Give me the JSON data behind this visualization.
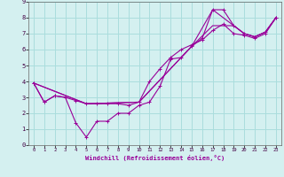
{
  "xlabel": "Windchill (Refroidissement éolien,°C)",
  "bg_color": "#d4f0f0",
  "line_color": "#990099",
  "grid_color": "#aadddd",
  "xlim": [
    -0.5,
    23.5
  ],
  "ylim": [
    0,
    9
  ],
  "xticks": [
    0,
    1,
    2,
    3,
    4,
    5,
    6,
    7,
    8,
    9,
    10,
    11,
    12,
    13,
    14,
    15,
    16,
    17,
    18,
    19,
    20,
    21,
    22,
    23
  ],
  "yticks": [
    0,
    1,
    2,
    3,
    4,
    5,
    6,
    7,
    8,
    9
  ],
  "series1_x": [
    0,
    1,
    2,
    3,
    4,
    5,
    6,
    7,
    8,
    9,
    10,
    11,
    12,
    13,
    14,
    15,
    16,
    17,
    18,
    19,
    20,
    21,
    22,
    23
  ],
  "series1_y": [
    3.9,
    2.7,
    3.1,
    3.0,
    1.4,
    0.5,
    1.5,
    1.5,
    2.0,
    2.0,
    2.5,
    2.7,
    3.7,
    5.4,
    5.5,
    6.2,
    6.7,
    8.5,
    8.5,
    7.5,
    7.0,
    6.8,
    7.1,
    8.0
  ],
  "series2_x": [
    0,
    1,
    2,
    3,
    4,
    5,
    6,
    7,
    8,
    9,
    10,
    11,
    12,
    13,
    14,
    15,
    16,
    17,
    18,
    19,
    20,
    21,
    22,
    23
  ],
  "series2_y": [
    3.9,
    2.7,
    3.1,
    3.0,
    2.8,
    2.6,
    2.6,
    2.6,
    2.6,
    2.5,
    2.7,
    4.0,
    4.8,
    5.5,
    6.0,
    6.3,
    6.6,
    7.2,
    7.6,
    7.0,
    6.9,
    6.7,
    7.0,
    8.0
  ],
  "series3_x": [
    0,
    5,
    10,
    15,
    17,
    19,
    20,
    21,
    22,
    23
  ],
  "series3_y": [
    3.9,
    2.6,
    2.7,
    6.2,
    8.5,
    7.5,
    7.0,
    6.8,
    7.1,
    8.0
  ],
  "series4_x": [
    0,
    5,
    10,
    15,
    17,
    19,
    20,
    21,
    22,
    23
  ],
  "series4_y": [
    3.9,
    2.6,
    2.7,
    6.2,
    7.5,
    7.5,
    7.0,
    6.8,
    7.1,
    8.0
  ]
}
